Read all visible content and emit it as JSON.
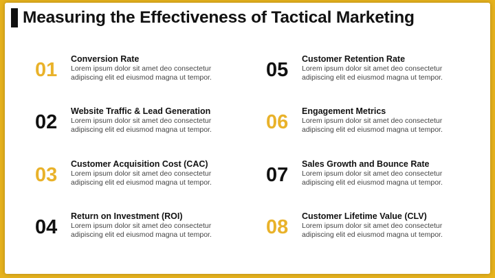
{
  "slide": {
    "title": "Measuring the Effectiveness of Tactical Marketing",
    "items": [
      {
        "number": "01",
        "title": "Conversion Rate",
        "description": "Lorem ipsum dolor sit amet deo consectetur adipiscing elit ed eiusmod magna ut tempor.",
        "color": "gold"
      },
      {
        "number": "02",
        "title": "Website Traffic & Lead Generation",
        "description": "Lorem ipsum dolor sit amet deo consectetur adipiscing elit ed eiusmod magna ut tempor.",
        "color": "dark"
      },
      {
        "number": "03",
        "title": "Customer Acquisition Cost (CAC)",
        "description": "Lorem ipsum dolor sit amet deo consectetur adipiscing elit ed eiusmod magna ut tempor.",
        "color": "gold"
      },
      {
        "number": "04",
        "title": "Return on Investment (ROI)",
        "description": "Lorem ipsum dolor sit amet deo consectetur adipiscing elit ed eiusmod magna ut tempor.",
        "color": "dark"
      },
      {
        "number": "05",
        "title": "Customer Retention Rate",
        "description": "Lorem ipsum dolor sit amet deo consectetur adipiscing elit ed eiusmod magna ut tempor.",
        "color": "dark"
      },
      {
        "number": "06",
        "title": "Engagement Metrics",
        "description": "Lorem ipsum dolor sit amet deo consectetur adipiscing elit ed eiusmod magna ut tempor.",
        "color": "gold"
      },
      {
        "number": "07",
        "title": "Sales Growth and Bounce Rate",
        "description": "Lorem ipsum dolor sit amet deo consectetur adipiscing elit ed eiusmod magna ut tempor.",
        "color": "dark"
      },
      {
        "number": "08",
        "title": "Customer Lifetime Value (CLV)",
        "description": "Lorem ipsum dolor sit amet deo consectetur adipiscing elit ed eiusmod magna ut tempor.",
        "color": "gold"
      }
    ]
  },
  "colors": {
    "frame": "#e6b21d",
    "accent_gold": "#e9b22a",
    "text_dark": "#111111"
  }
}
